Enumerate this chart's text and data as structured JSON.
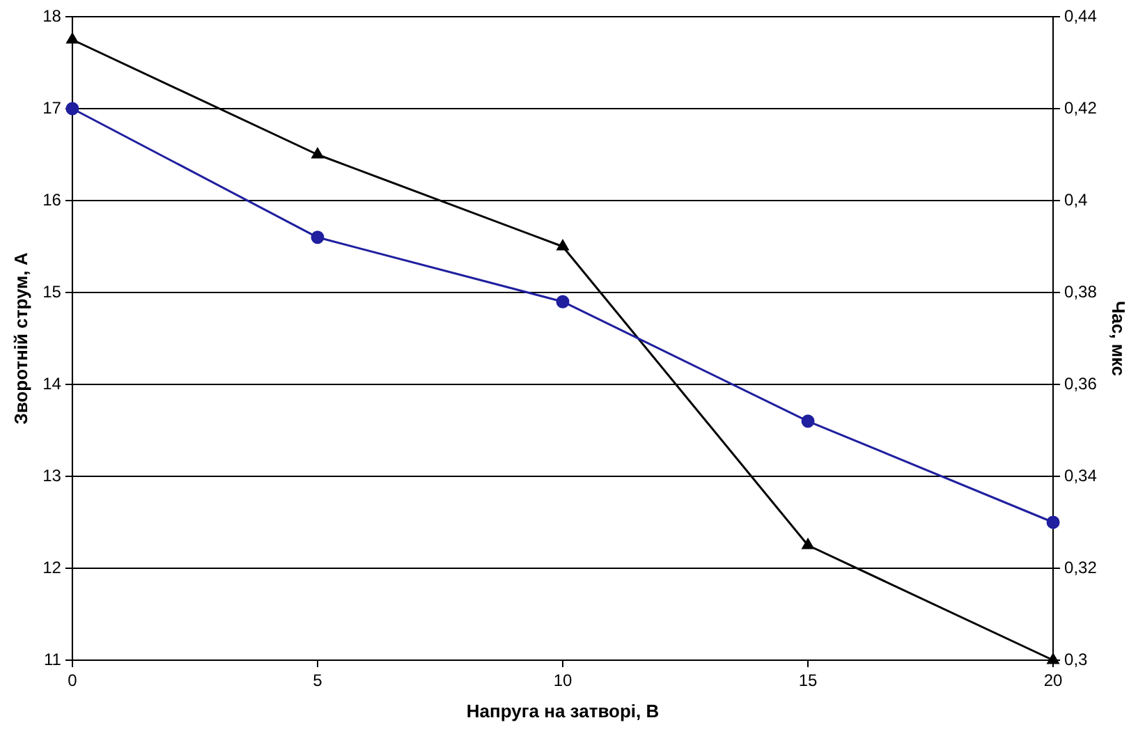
{
  "chart_data": {
    "type": "line",
    "xlabel": "Напруга на затворі, В",
    "ylabel": "Зворотній струм, А",
    "y2label": "Час, мкс",
    "x": [
      0,
      5,
      10,
      15,
      20
    ],
    "xlim": [
      0,
      20
    ],
    "xticks": [
      0,
      5,
      10,
      15,
      20
    ],
    "ylim": [
      11,
      18
    ],
    "yticks": [
      11,
      12,
      13,
      14,
      15,
      16,
      17,
      18
    ],
    "y2lim": [
      0.3,
      0.44
    ],
    "y2ticks": [
      {
        "value": 0.3,
        "label": "0,3"
      },
      {
        "value": 0.32,
        "label": "0,32"
      },
      {
        "value": 0.34,
        "label": "0,34"
      },
      {
        "value": 0.36,
        "label": "0,36"
      },
      {
        "value": 0.38,
        "label": "0,38"
      },
      {
        "value": 0.4,
        "label": "0,4"
      },
      {
        "value": 0.42,
        "label": "0,42"
      },
      {
        "value": 0.44,
        "label": "0,44"
      }
    ],
    "grid": "y",
    "legend": false,
    "series": [
      {
        "color": "#1f1f9f",
        "values": [
          17,
          15.6,
          14.9,
          13.6,
          12.5
        ],
        "marker": "circle"
      },
      {
        "color": "#000000",
        "values": [
          0.435,
          0.41,
          0.39,
          0.325,
          0.3
        ],
        "marker": "triangle",
        "axis": "y2"
      }
    ]
  }
}
